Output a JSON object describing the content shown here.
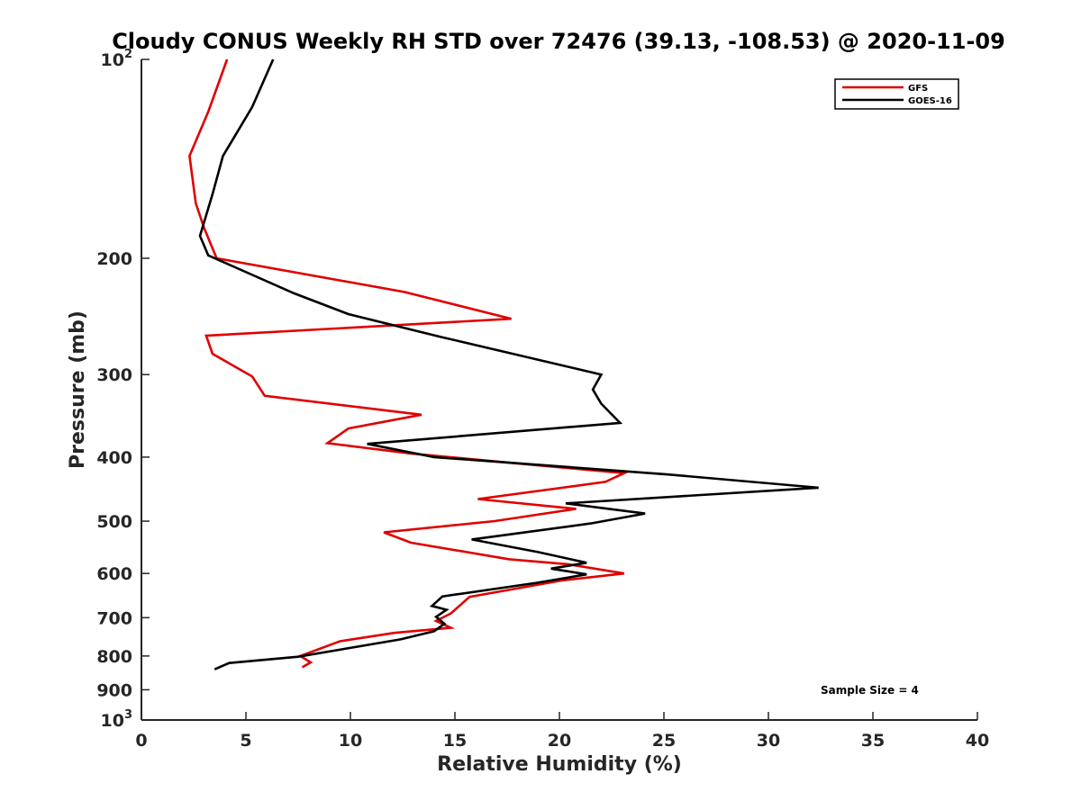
{
  "chart_data": {
    "type": "line",
    "title": "Cloudy CONUS Weekly RH STD over 72476 (39.13, -108.53) @ 2020-11-09",
    "xlabel": "Relative Humidity (%)",
    "ylabel": "Pressure (mb)",
    "xlim": [
      0,
      40
    ],
    "ylim": [
      100,
      1000
    ],
    "y_scale": "log",
    "y_reversed": true,
    "grid": false,
    "x_ticks": [
      0,
      5,
      10,
      15,
      20,
      25,
      30,
      35,
      40
    ],
    "y_ticks": [
      {
        "value": 100,
        "label": "10",
        "sup": "2"
      },
      {
        "value": 200,
        "label": "200"
      },
      {
        "value": 300,
        "label": "300"
      },
      {
        "value": 400,
        "label": "400"
      },
      {
        "value": 500,
        "label": "500"
      },
      {
        "value": 600,
        "label": "600"
      },
      {
        "value": 700,
        "label": "700"
      },
      {
        "value": 800,
        "label": "800"
      },
      {
        "value": 900,
        "label": "900"
      },
      {
        "value": 1000,
        "label": "10",
        "sup": "3"
      }
    ],
    "legend_position": "top-right",
    "annotation": "Sample Size = 4",
    "series": [
      {
        "name": "GFS",
        "color": "#e00000",
        "points": [
          [
            4.1,
            100
          ],
          [
            3.2,
            120
          ],
          [
            2.3,
            140
          ],
          [
            2.6,
            165
          ],
          [
            3.0,
            180
          ],
          [
            3.6,
            200
          ],
          [
            12.6,
            225
          ],
          [
            17.7,
            247
          ],
          [
            3.1,
            262
          ],
          [
            3.4,
            279
          ],
          [
            5.3,
            302
          ],
          [
            5.9,
            323
          ],
          [
            13.4,
            345
          ],
          [
            9.9,
            362
          ],
          [
            8.9,
            381
          ],
          [
            12.9,
            395
          ],
          [
            18.4,
            410
          ],
          [
            23.1,
            423
          ],
          [
            22.2,
            436
          ],
          [
            16.1,
            463
          ],
          [
            20.8,
            479
          ],
          [
            16.9,
            500
          ],
          [
            11.6,
            520
          ],
          [
            12.9,
            539
          ],
          [
            17.6,
            571
          ],
          [
            20.4,
            581
          ],
          [
            23.1,
            600
          ],
          [
            20.1,
            615
          ],
          [
            15.7,
            651
          ],
          [
            14.8,
            690
          ],
          [
            14.1,
            708
          ],
          [
            14.8,
            725
          ],
          [
            12.1,
            738
          ],
          [
            9.5,
            760
          ],
          [
            7.6,
            800
          ],
          [
            8.1,
            818
          ],
          [
            7.7,
            832
          ]
        ]
      },
      {
        "name": "GOES-16",
        "color": "#000000",
        "points": [
          [
            6.3,
            100
          ],
          [
            5.3,
            118
          ],
          [
            3.9,
            140
          ],
          [
            3.4,
            160
          ],
          [
            2.8,
            185
          ],
          [
            3.2,
            198
          ],
          [
            7.3,
            226
          ],
          [
            9.9,
            243
          ],
          [
            14.3,
            263
          ],
          [
            22.0,
            300
          ],
          [
            21.6,
            316
          ],
          [
            22.0,
            332
          ],
          [
            22.9,
            355
          ],
          [
            10.8,
            382
          ],
          [
            14.0,
            400
          ],
          [
            25.2,
            425
          ],
          [
            32.4,
            445
          ],
          [
            20.3,
            470
          ],
          [
            24.1,
            487
          ],
          [
            21.5,
            504
          ],
          [
            15.8,
            533
          ],
          [
            19.0,
            557
          ],
          [
            21.3,
            578
          ],
          [
            19.6,
            590
          ],
          [
            21.3,
            602
          ],
          [
            18.9,
            620
          ],
          [
            14.4,
            650
          ],
          [
            13.9,
            672
          ],
          [
            14.6,
            681
          ],
          [
            14.1,
            698
          ],
          [
            14.5,
            715
          ],
          [
            14.0,
            734
          ],
          [
            12.4,
            755
          ],
          [
            7.5,
            802
          ],
          [
            4.2,
            820
          ],
          [
            3.5,
            838
          ]
        ]
      }
    ]
  }
}
